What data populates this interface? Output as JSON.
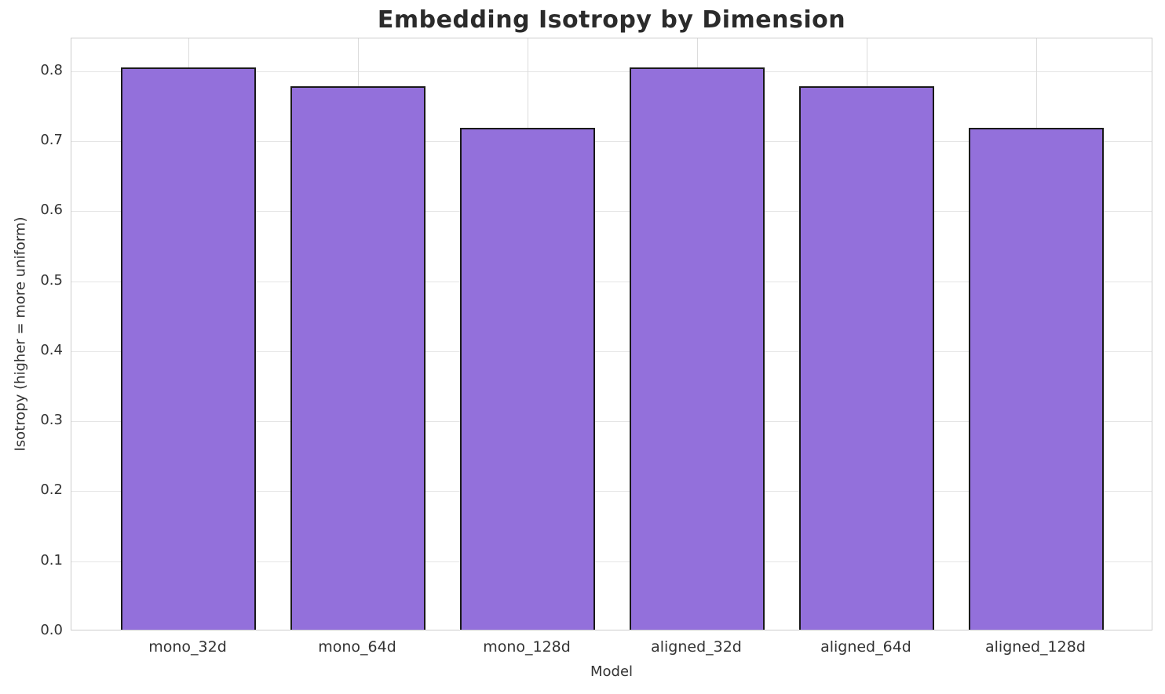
{
  "chart_data": {
    "type": "bar",
    "title": "Embedding Isotropy by Dimension",
    "xlabel": "Model",
    "ylabel": "Isotropy (higher = more uniform)",
    "categories": [
      "mono_32d",
      "mono_64d",
      "mono_128d",
      "aligned_32d",
      "aligned_64d",
      "aligned_128d"
    ],
    "values": [
      0.803,
      0.776,
      0.717,
      0.803,
      0.776,
      0.717
    ],
    "ylim": [
      0,
      0.847
    ],
    "yticks": [
      0.0,
      0.1,
      0.2,
      0.3,
      0.4,
      0.5,
      0.6,
      0.7,
      0.8
    ],
    "ytick_labels": [
      "0.0",
      "0.1",
      "0.2",
      "0.3",
      "0.4",
      "0.5",
      "0.6",
      "0.7",
      "0.8"
    ],
    "grid": true,
    "legend": null,
    "bar_color": "#9370DB",
    "bar_edge_color": "#1a1a1a",
    "grid_color": "#e5e5e5",
    "spine_color": "#cccccc",
    "text_color": "#333333",
    "title_color": "#2b2b2b"
  }
}
